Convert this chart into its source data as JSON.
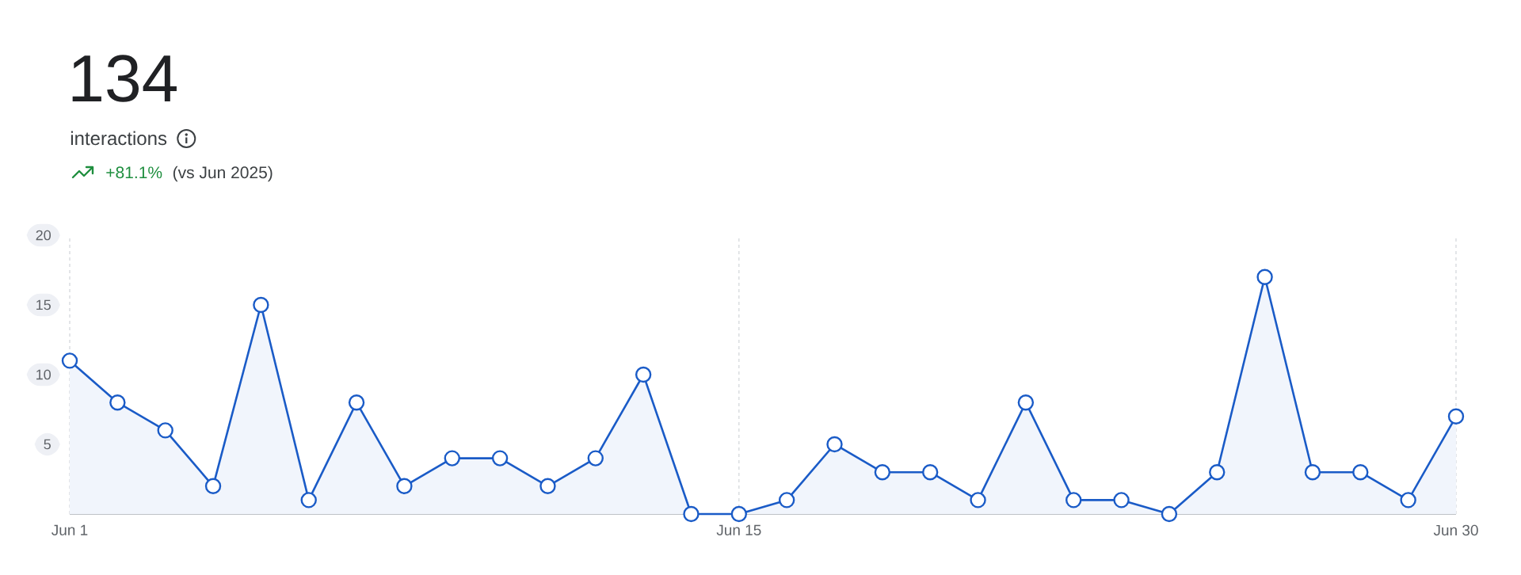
{
  "chart_data": {
    "type": "area",
    "title": "interactions",
    "annotations": [
      "134",
      "+81.1%",
      "(vs Jun 2025)"
    ],
    "categories": [
      "Jun 1",
      null,
      null,
      null,
      null,
      null,
      null,
      null,
      null,
      null,
      null,
      null,
      null,
      null,
      "Jun 15",
      null,
      null,
      null,
      null,
      null,
      null,
      null,
      null,
      null,
      null,
      null,
      null,
      null,
      null,
      "Jun 30"
    ],
    "series": [
      {
        "color": "#1a5bc7",
        "values": [
          11,
          8,
          6,
          2,
          15,
          1,
          8,
          2,
          4,
          4,
          2,
          4,
          10,
          0,
          0,
          1,
          5,
          3,
          3,
          1,
          8,
          1,
          1,
          0,
          3,
          17,
          3,
          3,
          1,
          7
        ]
      }
    ],
    "ylim": [
      0,
      20
    ],
    "yticks": [
      5,
      10,
      15,
      20
    ],
    "grid": "x",
    "marker": "circle",
    "line_style": "solid"
  }
}
